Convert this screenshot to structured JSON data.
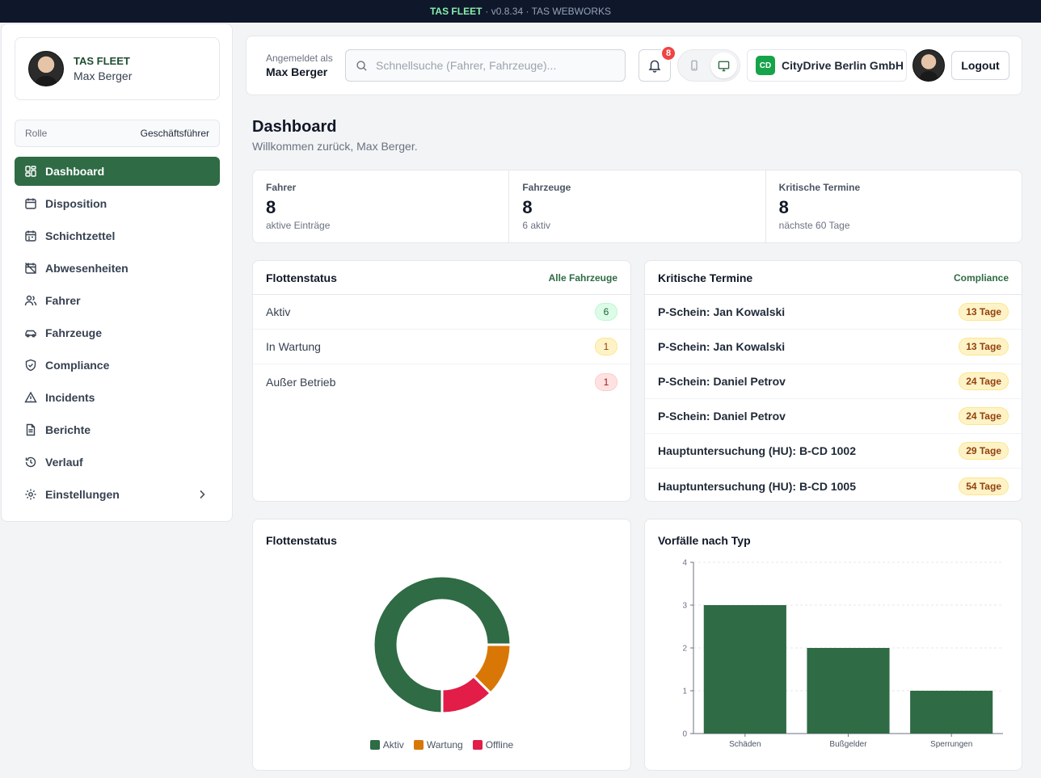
{
  "topbar": {
    "brand": "TAS FLEET",
    "rest": "· v0.8.34 · TAS WEBWORKS"
  },
  "sidebar": {
    "org": "TAS FLEET",
    "user": "Max Berger",
    "role_label": "Rolle",
    "role_value": "Geschäftsführer",
    "items": [
      {
        "label": "Dashboard",
        "icon": "dashboard-icon"
      },
      {
        "label": "Disposition",
        "icon": "calendar-icon"
      },
      {
        "label": "Schichtzettel",
        "icon": "calendar-icon"
      },
      {
        "label": "Abwesenheiten",
        "icon": "calendar-off-icon"
      },
      {
        "label": "Fahrer",
        "icon": "users-icon"
      },
      {
        "label": "Fahrzeuge",
        "icon": "car-icon"
      },
      {
        "label": "Compliance",
        "icon": "shield-icon"
      },
      {
        "label": "Incidents",
        "icon": "warning-icon"
      },
      {
        "label": "Berichte",
        "icon": "file-icon"
      },
      {
        "label": "Verlauf",
        "icon": "history-icon"
      },
      {
        "label": "Einstellungen",
        "icon": "gear-icon"
      }
    ]
  },
  "header": {
    "logged_in_as": "Angemeldet als",
    "user": "Max Berger",
    "search_placeholder": "Schnellsuche (Fahrer, Fahrzeuge)...",
    "notifications": "8",
    "company_logo": "CD",
    "company": "CityDrive Berlin GmbH",
    "logout": "Logout"
  },
  "page": {
    "title": "Dashboard",
    "subtitle": "Willkommen zurück, Max Berger."
  },
  "stats": [
    {
      "label": "Fahrer",
      "value": "8",
      "sub": "aktive Einträge"
    },
    {
      "label": "Fahrzeuge",
      "value": "8",
      "sub": "6 aktiv"
    },
    {
      "label": "Kritische Termine",
      "value": "8",
      "sub": "nächste 60 Tage"
    }
  ],
  "fleet_status": {
    "title": "Flottenstatus",
    "link": "Alle Fahrzeuge",
    "rows": [
      {
        "label": "Aktiv",
        "count": "6"
      },
      {
        "label": "In Wartung",
        "count": "1"
      },
      {
        "label": "Außer Betrieb",
        "count": "1"
      }
    ]
  },
  "critical": {
    "title": "Kritische Termine",
    "link": "Compliance",
    "rows": [
      {
        "label": "P-Schein: Jan Kowalski",
        "days": "13 Tage"
      },
      {
        "label": "P-Schein: Jan Kowalski",
        "days": "13 Tage"
      },
      {
        "label": "P-Schein: Daniel Petrov",
        "days": "24 Tage"
      },
      {
        "label": "P-Schein: Daniel Petrov",
        "days": "24 Tage"
      },
      {
        "label": "Hauptuntersuchung (HU): B-CD 1002",
        "days": "29 Tage"
      },
      {
        "label": "Hauptuntersuchung (HU): B-CD 1005",
        "days": "54 Tage"
      }
    ]
  },
  "chart_data": [
    {
      "type": "pie",
      "title": "Flottenstatus",
      "categories": [
        "Aktiv",
        "Wartung",
        "Offline"
      ],
      "values": [
        6,
        1,
        1
      ],
      "colors": [
        "#2f6b45",
        "#d97706",
        "#e11d48"
      ],
      "legend": "bottom"
    },
    {
      "type": "bar",
      "title": "Vorfälle nach Typ",
      "categories": [
        "Schäden",
        "Bußgelder",
        "Sperrungen"
      ],
      "values": [
        3,
        2,
        1
      ],
      "ylim": [
        0,
        4
      ],
      "yticks": [
        "0",
        "1",
        "2",
        "3",
        "4"
      ],
      "color": "#2f6b45",
      "grid": true
    }
  ]
}
